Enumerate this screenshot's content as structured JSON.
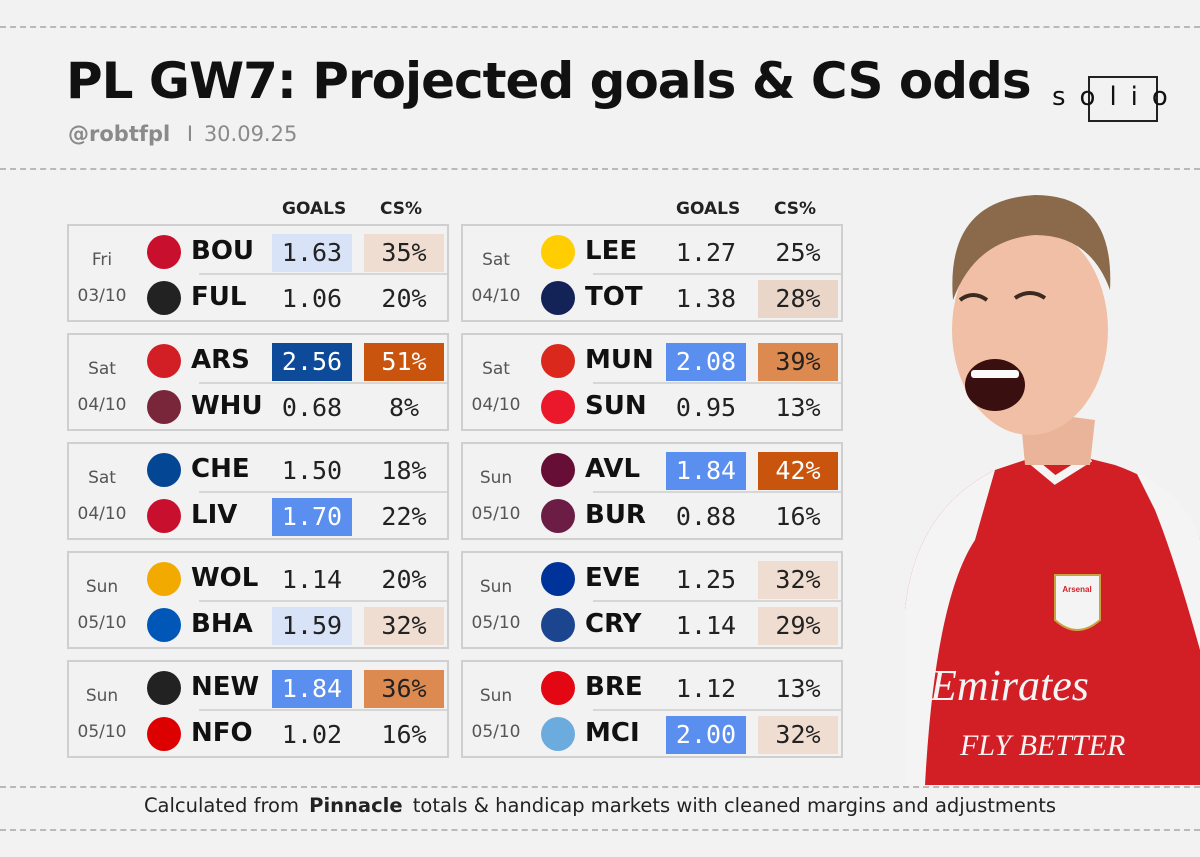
{
  "header": {
    "title": "PL GW7: Projected goals & CS odds",
    "handle": "@robtfpl",
    "separator": "I",
    "date": "30.09.25",
    "logo_text": "solio"
  },
  "columns": {
    "goals": "GOALS",
    "cs": "CS%"
  },
  "colors": {
    "goals_dark": "#0d4a9a",
    "goals_mid": "#5a8ff0",
    "goals_light": "#d9e3f7",
    "cs_dark": "#c8540e",
    "cs_mid": "#dd8a50",
    "cs_light": "#f0ddd1",
    "cs_pale": "#ead6c9",
    "kit_red": "#d21f26"
  },
  "matches": [
    {
      "day": "Fri",
      "date": "03/10",
      "home": {
        "code": "BOU",
        "goals": "1.63",
        "cs": "35%"
      },
      "away": {
        "code": "FUL",
        "goals": "1.06",
        "cs": "20%"
      }
    },
    {
      "day": "Sat",
      "date": "04/10",
      "home": {
        "code": "ARS",
        "goals": "2.56",
        "cs": "51%"
      },
      "away": {
        "code": "WHU",
        "goals": "0.68",
        "cs": "8%"
      }
    },
    {
      "day": "Sat",
      "date": "04/10",
      "home": {
        "code": "CHE",
        "goals": "1.50",
        "cs": "18%"
      },
      "away": {
        "code": "LIV",
        "goals": "1.70",
        "cs": "22%"
      }
    },
    {
      "day": "Sun",
      "date": "05/10",
      "home": {
        "code": "WOL",
        "goals": "1.14",
        "cs": "20%"
      },
      "away": {
        "code": "BHA",
        "goals": "1.59",
        "cs": "32%"
      }
    },
    {
      "day": "Sun",
      "date": "05/10",
      "home": {
        "code": "NEW",
        "goals": "1.84",
        "cs": "36%"
      },
      "away": {
        "code": "NFO",
        "goals": "1.02",
        "cs": "16%"
      }
    },
    {
      "day": "Sat",
      "date": "04/10",
      "home": {
        "code": "LEE",
        "goals": "1.27",
        "cs": "25%"
      },
      "away": {
        "code": "TOT",
        "goals": "1.38",
        "cs": "28%"
      }
    },
    {
      "day": "Sat",
      "date": "04/10",
      "home": {
        "code": "MUN",
        "goals": "2.08",
        "cs": "39%"
      },
      "away": {
        "code": "SUN",
        "goals": "0.95",
        "cs": "13%"
      }
    },
    {
      "day": "Sun",
      "date": "05/10",
      "home": {
        "code": "AVL",
        "goals": "1.84",
        "cs": "42%"
      },
      "away": {
        "code": "BUR",
        "goals": "0.88",
        "cs": "16%"
      }
    },
    {
      "day": "Sun",
      "date": "05/10",
      "home": {
        "code": "EVE",
        "goals": "1.25",
        "cs": "32%"
      },
      "away": {
        "code": "CRY",
        "goals": "1.14",
        "cs": "29%"
      }
    },
    {
      "day": "Sun",
      "date": "05/10",
      "home": {
        "code": "BRE",
        "goals": "1.12",
        "cs": "13%"
      },
      "away": {
        "code": "MCI",
        "goals": "2.00",
        "cs": "32%"
      }
    }
  ],
  "footer": {
    "prefix": "Calculated from",
    "source": "Pinnacle",
    "suffix": "totals & handicap markets with cleaned margins and adjustments"
  },
  "player_shirt": {
    "sponsor_line1": "Emirates",
    "sponsor_line2": "FLY BETTER",
    "club": "Arsenal"
  }
}
